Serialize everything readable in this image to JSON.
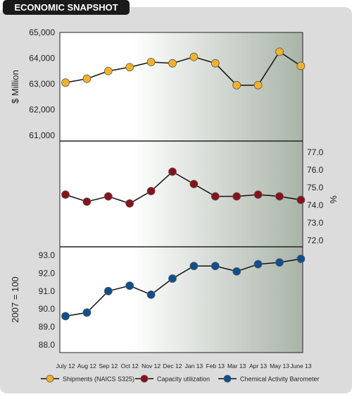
{
  "header": {
    "title": "ECONOMIC SNAPSHOT"
  },
  "colors": {
    "panel_bg": "#dcdcdc",
    "plot_gradient_start": "#ffffff",
    "plot_gradient_end": "#a9b4a8",
    "shipments": "#f4b223",
    "capacity": "#8c1018",
    "barometer": "#0d4f91",
    "title_bg": "#1a1a1a",
    "title_text": "#ffffff"
  },
  "chart_data": {
    "type": "line",
    "categories": [
      "July 12",
      "Aug 12",
      "Sep 12",
      "Oct 12",
      "Nov 12",
      "Dec 12",
      "Jan 13",
      "Feb 13",
      "Mar 13",
      "Apr 13",
      "May 13",
      "June 13"
    ],
    "legend_position": "bottom",
    "grid": false,
    "panels": [
      {
        "key": "shipments",
        "series_name": "Shipments (NAICS S325)",
        "ylabel": "$ Million",
        "axis_side": "left",
        "ylim": [
          61000,
          65000
        ],
        "ticks": [
          "61,000",
          "62,000",
          "63,000",
          "64,000",
          "65,000"
        ],
        "tick_values": [
          61000,
          62000,
          63000,
          64000,
          65000
        ],
        "values": [
          63050,
          63200,
          63500,
          63650,
          63850,
          63800,
          64050,
          63800,
          62950,
          62950,
          64250,
          63700
        ]
      },
      {
        "key": "capacity",
        "series_name": "Capacity utilization",
        "ylabel": "%",
        "axis_side": "right",
        "ylim": [
          72.0,
          77.0
        ],
        "ticks": [
          "72.0",
          "73.0",
          "74.0",
          "75.0",
          "76.0",
          "77.0"
        ],
        "tick_values": [
          72,
          73,
          74,
          75,
          76,
          77
        ],
        "values": [
          74.6,
          74.2,
          74.5,
          74.1,
          74.8,
          75.9,
          75.2,
          74.5,
          74.5,
          74.6,
          74.5,
          74.3
        ]
      },
      {
        "key": "barometer",
        "series_name": "Chemical Activity Barometer",
        "ylabel": "2007 = 100",
        "axis_side": "left",
        "ylim": [
          88.0,
          93.0
        ],
        "ticks": [
          "88.0",
          "89.0",
          "90.0",
          "91.0",
          "92.0",
          "93.0"
        ],
        "tick_values": [
          88,
          89,
          90,
          91,
          92,
          93
        ],
        "values": [
          89.6,
          89.8,
          91.0,
          91.3,
          90.8,
          91.7,
          92.4,
          92.4,
          92.1,
          92.5,
          92.6,
          92.8
        ]
      }
    ]
  }
}
